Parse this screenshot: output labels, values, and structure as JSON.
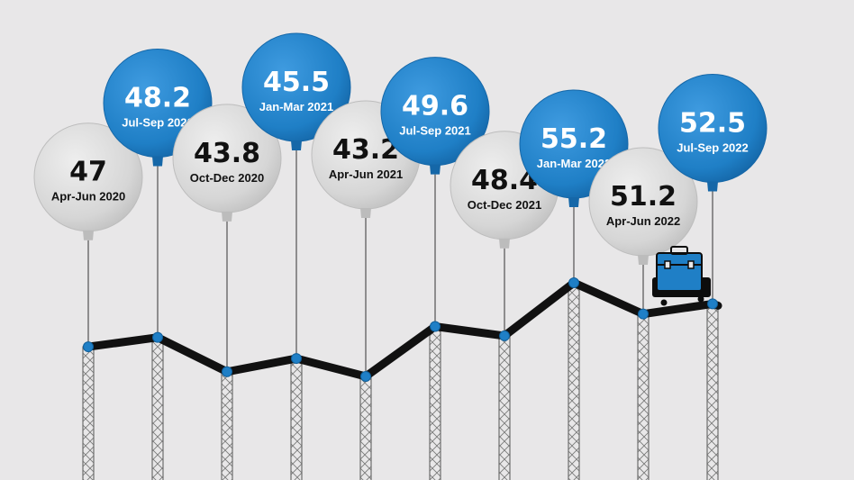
{
  "chart_data": {
    "type": "line",
    "style": "balloon-line infographic",
    "categories": [
      "Apr-Jun 2020",
      "Jul-Sep 2020",
      "Oct-Dec 2020",
      "Jan-Mar 2021",
      "Apr-Jun 2021",
      "Jul-Sep 2021",
      "Oct-Dec 2021",
      "Jan-Mar 2022",
      "Apr-Jun 2022",
      "Jul-Sep 2022"
    ],
    "values": [
      47,
      48.2,
      43.8,
      45.5,
      43.2,
      49.6,
      48.4,
      55.2,
      51.2,
      52.5
    ],
    "value_labels": [
      "47",
      "48.2",
      "43.8",
      "45.5",
      "43.2",
      "49.6",
      "48.4",
      "55.2",
      "51.2",
      "52.5"
    ],
    "balloon_colors": [
      "grey",
      "blue",
      "grey",
      "blue",
      "grey",
      "blue",
      "grey",
      "blue",
      "grey",
      "blue"
    ],
    "title": "",
    "xlabel": "",
    "ylabel": "",
    "grid": false,
    "legend": "none",
    "decoration": "briefcase-on-trolley-icon at the end of the line"
  },
  "colors": {
    "background": "#e8e7e8",
    "blue_balloon": "#1f7fc6",
    "grey_balloon": "#d7d7d7",
    "line": "#111111",
    "marker": "#1f7fc6",
    "pillar": "#777777"
  }
}
